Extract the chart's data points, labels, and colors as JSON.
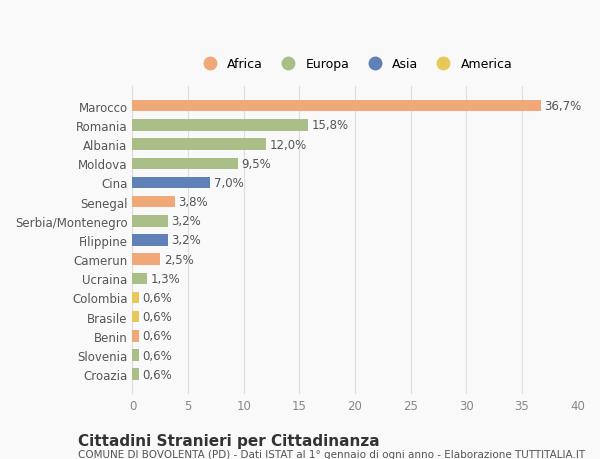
{
  "countries": [
    "Marocco",
    "Romania",
    "Albania",
    "Moldova",
    "Cina",
    "Senegal",
    "Serbia/Montenegro",
    "Filippine",
    "Camerun",
    "Ucraina",
    "Colombia",
    "Brasile",
    "Benin",
    "Slovenia",
    "Croazia"
  ],
  "values": [
    36.7,
    15.8,
    12.0,
    9.5,
    7.0,
    3.8,
    3.2,
    3.2,
    2.5,
    1.3,
    0.6,
    0.6,
    0.6,
    0.6,
    0.6
  ],
  "labels": [
    "36,7%",
    "15,8%",
    "12,0%",
    "9,5%",
    "7,0%",
    "3,8%",
    "3,2%",
    "3,2%",
    "2,5%",
    "1,3%",
    "0,6%",
    "0,6%",
    "0,6%",
    "0,6%",
    "0,6%"
  ],
  "continents": [
    "Africa",
    "Europa",
    "Europa",
    "Europa",
    "Asia",
    "Africa",
    "Europa",
    "Asia",
    "Africa",
    "Europa",
    "America",
    "America",
    "Africa",
    "Europa",
    "Europa"
  ],
  "continent_colors": {
    "Africa": "#F0A878",
    "Europa": "#AABF88",
    "Asia": "#6080B8",
    "America": "#E8C858"
  },
  "legend_order": [
    "Africa",
    "Europa",
    "Asia",
    "America"
  ],
  "legend_colors": [
    "#F0A878",
    "#AABF88",
    "#6080B8",
    "#E8C858"
  ],
  "xlim": [
    0,
    40
  ],
  "xticks": [
    0,
    5,
    10,
    15,
    20,
    25,
    30,
    35,
    40
  ],
  "title": "Cittadini Stranieri per Cittadinanza",
  "subtitle": "COMUNE DI BOVOLENTA (PD) - Dati ISTAT al 1° gennaio di ogni anno - Elaborazione TUTTITALIA.IT",
  "background_color": "#f9f9f9",
  "grid_color": "#dddddd",
  "bar_height": 0.6,
  "label_fontsize": 8.5,
  "tick_fontsize": 8.5,
  "title_fontsize": 11,
  "subtitle_fontsize": 7.5
}
